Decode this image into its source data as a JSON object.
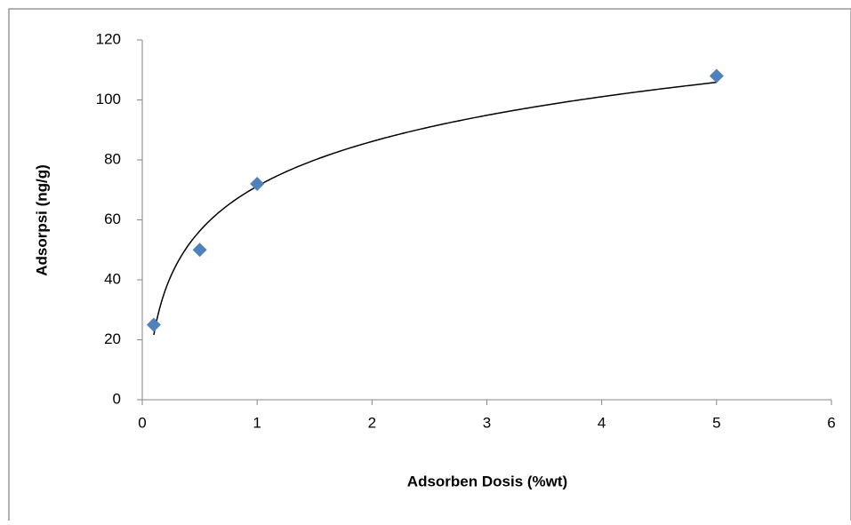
{
  "chart_data": {
    "type": "scatter",
    "x_label": "Adsorben Dosis (%wt)",
    "y_label": "Adsorpsi (ng/g)",
    "series": [
      {
        "x": [
          0.1,
          0.5,
          1,
          5
        ],
        "values": [
          25,
          50,
          72,
          108
        ],
        "color": "#4f81bd"
      }
    ],
    "trendline": "logarithmic",
    "trendline_color": "#000000",
    "xlim": [
      0,
      6
    ],
    "xticks": [
      0,
      1,
      2,
      3,
      4,
      5,
      6
    ],
    "ylim": [
      0,
      120
    ],
    "yticks": [
      0,
      20,
      40,
      60,
      80,
      100,
      120
    ],
    "grid": false
  }
}
